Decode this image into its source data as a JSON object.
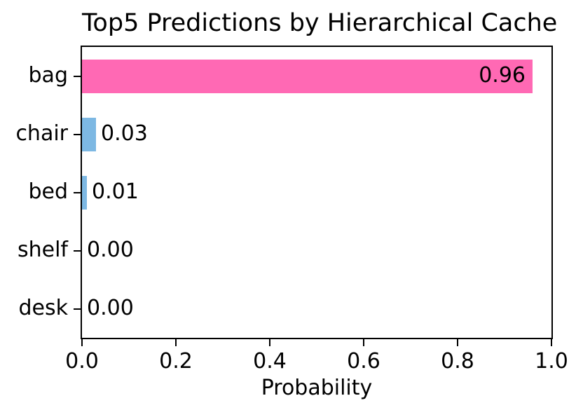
{
  "chart_data": {
    "type": "bar",
    "orientation": "horizontal",
    "title": "Top5 Predictions by Hierarchical Cache",
    "xlabel": "Probability",
    "ylabel": "",
    "categories": [
      "bag",
      "chair",
      "bed",
      "shelf",
      "desk"
    ],
    "values": [
      0.96,
      0.03,
      0.01,
      0.0,
      0.0
    ],
    "value_labels": [
      "0.96",
      "0.03",
      "0.01",
      "0.00",
      "0.00"
    ],
    "bar_colors": [
      "#FF69B4",
      "#7DB8E3",
      "#7DB8E3",
      "#7DB8E3",
      "#7DB8E3"
    ],
    "xlim": [
      0.0,
      1.0
    ],
    "xticks": [
      0.0,
      0.2,
      0.4,
      0.6,
      0.8,
      1.0
    ],
    "xtick_labels": [
      "0.0",
      "0.2",
      "0.4",
      "0.6",
      "0.8",
      "1.0"
    ],
    "grid": false,
    "legend_position": "none"
  },
  "colors": {
    "highlight_bar": "#FF69B4",
    "default_bar": "#7DB8E3",
    "text": "#000000",
    "spine": "#000000",
    "background": "#FFFFFF"
  }
}
